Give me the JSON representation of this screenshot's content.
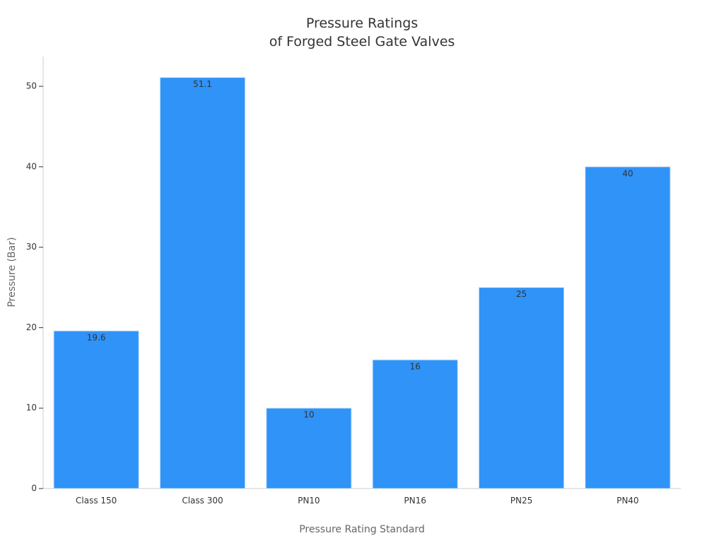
{
  "chart_data": {
    "type": "bar",
    "title": "Pressure Ratings\nof Forged Steel Gate Valves",
    "x_label": "Pressure Rating Standard",
    "y_label": "Pressure (Bar)",
    "categories": [
      "Class 150",
      "Class 300",
      "PN10",
      "PN16",
      "PN25",
      "PN40"
    ],
    "values": [
      19.6,
      51.1,
      10,
      16,
      25,
      40
    ],
    "color": "#2f93f8",
    "ylim": [
      0,
      53.7
    ],
    "yticks": [
      0,
      10,
      20,
      30,
      40,
      50
    ],
    "grid": false
  }
}
